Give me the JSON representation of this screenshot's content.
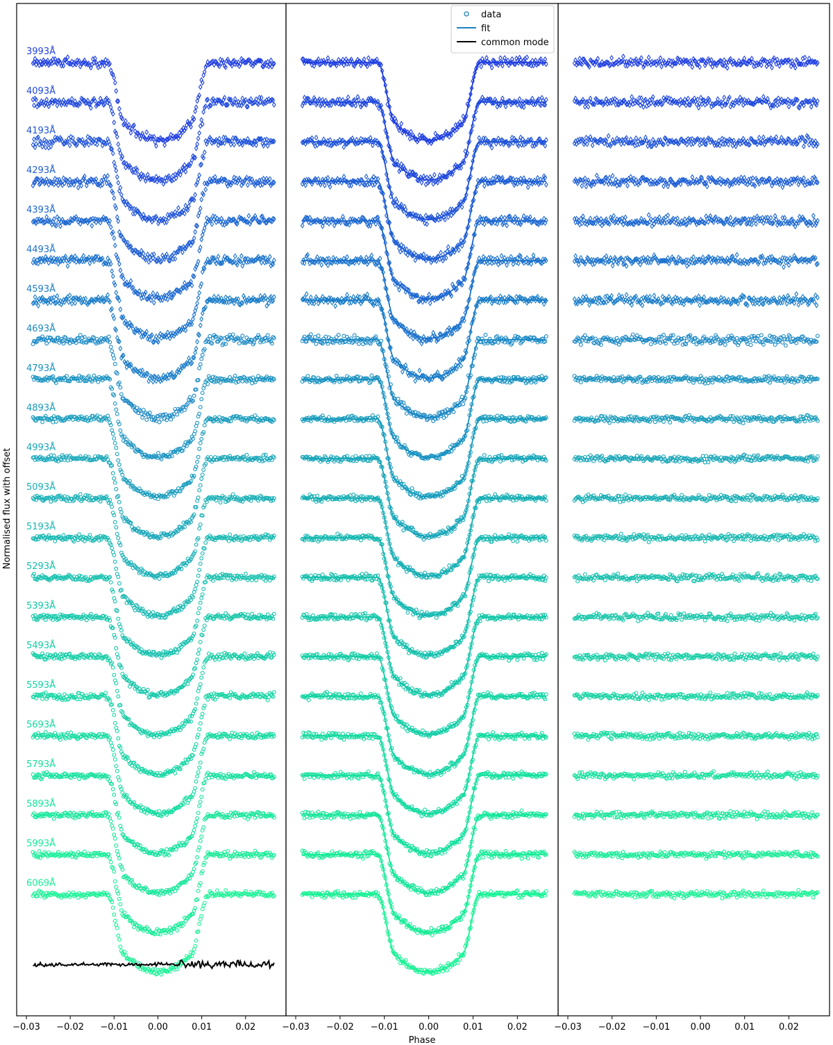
{
  "chart_data": {
    "type": "scatter",
    "xlabel": "Phase",
    "ylabel": "Normalised flux with offset",
    "xlim": [
      -0.03,
      0.027
    ],
    "xticks": [
      -0.03,
      -0.02,
      -0.01,
      0.0,
      0.01,
      0.02
    ],
    "xtick_labels": [
      "−0.03",
      "−0.02",
      "−0.01",
      "0.00",
      "0.01",
      "0.02"
    ],
    "panels": 3,
    "legend": {
      "placement": "top-center",
      "entries": [
        "data",
        "fit",
        "common mode"
      ]
    },
    "transit": {
      "t1": -0.0115,
      "t2": -0.0075,
      "t3": 0.0075,
      "t4": 0.0115,
      "depth": 0.0105,
      "offset_step": 0.0055
    },
    "series": [
      {
        "name": "3993Å",
        "color": "#1f3fe0"
      },
      {
        "name": "4093Å",
        "color": "#1e48dc"
      },
      {
        "name": "4193Å",
        "color": "#1d52d8"
      },
      {
        "name": "4293Å",
        "color": "#1c5dd4"
      },
      {
        "name": "4393Å",
        "color": "#1b67d0"
      },
      {
        "name": "4493Å",
        "color": "#1a72cc"
      },
      {
        "name": "4593Å",
        "color": "#197cc8"
      },
      {
        "name": "4693Å",
        "color": "#1887c4"
      },
      {
        "name": "4793Å",
        "color": "#1791c0"
      },
      {
        "name": "4893Å",
        "color": "#169bbc"
      },
      {
        "name": "4993Å",
        "color": "#15a5b8"
      },
      {
        "name": "5093Å",
        "color": "#14aeb4"
      },
      {
        "name": "5193Å",
        "color": "#13b7b0"
      },
      {
        "name": "5293Å",
        "color": "#12bfac"
      },
      {
        "name": "5393Å",
        "color": "#12c6a8"
      },
      {
        "name": "5493Å",
        "color": "#11cda5"
      },
      {
        "name": "5593Å",
        "color": "#11d4a2"
      },
      {
        "name": "5693Å",
        "color": "#11da9f"
      },
      {
        "name": "5793Å",
        "color": "#12e09c"
      },
      {
        "name": "5893Å",
        "color": "#13e699"
      },
      {
        "name": "5993Å",
        "color": "#14ec96"
      },
      {
        "name": "6069Å",
        "color": "#16f294"
      }
    ],
    "common_mode": {
      "name": "common mode",
      "color": "#000000"
    }
  }
}
